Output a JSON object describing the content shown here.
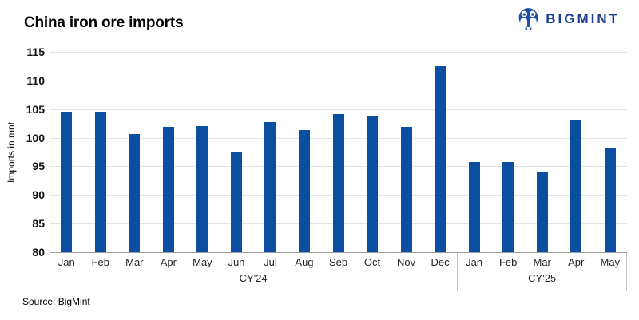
{
  "header": {
    "title": "China iron ore imports"
  },
  "logo": {
    "text": "BIGMINT",
    "color": "#1d3e94"
  },
  "chart_data": {
    "type": "bar",
    "title": "China iron ore imports",
    "xlabel": "",
    "ylabel": "Imports in mnt",
    "ylim": [
      80,
      115
    ],
    "ytick_step": 5,
    "yticks": [
      80,
      85,
      90,
      95,
      100,
      105,
      110,
      115
    ],
    "grid": "horizontal",
    "legend": "none",
    "bar_color": "#0b4ea2",
    "categories": [
      "Jan",
      "Feb",
      "Mar",
      "Apr",
      "May",
      "Jun",
      "Jul",
      "Aug",
      "Sep",
      "Oct",
      "Nov",
      "Dec",
      "Jan",
      "Feb",
      "Mar",
      "Apr",
      "May"
    ],
    "values": [
      104.6,
      104.6,
      100.7,
      101.9,
      102.0,
      97.6,
      102.8,
      101.4,
      104.1,
      103.8,
      101.9,
      112.5,
      95.7,
      95.7,
      94.0,
      103.1,
      98.1
    ],
    "groups": [
      {
        "label": "CY'24",
        "count": 12
      },
      {
        "label": "CY'25",
        "count": 5
      }
    ]
  },
  "source": "Source: BigMint"
}
